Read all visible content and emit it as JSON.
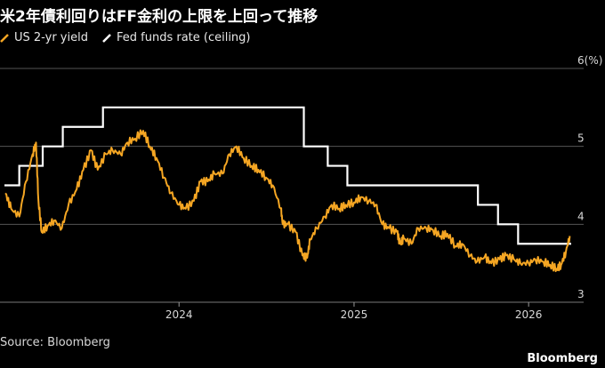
{
  "header": {
    "title": "米2年債利回りはFF金利の上限を上回って推移"
  },
  "footer": {
    "source": "Source: Bloomberg",
    "brand": "Bloomberg"
  },
  "colors": {
    "background": "#000000",
    "yield": "#f5a623",
    "fed": "#ffffff",
    "grid": "#555555"
  },
  "chart_data": {
    "type": "line",
    "title": "米2年債利回りはFF金利の上限を上回って推移",
    "xlabel": "",
    "ylabel": "",
    "y_unit_label": "6(%)",
    "ylim": [
      3,
      6
    ],
    "xlim": [
      "2023-01-01",
      "2026-03-31"
    ],
    "x_ticks": [
      "2024",
      "2025",
      "2026"
    ],
    "y_ticks": [
      "6(%)",
      "5",
      "4",
      "3"
    ],
    "grid": true,
    "legend_position": "top-left",
    "series": [
      {
        "name": "US 2-yr yield",
        "color": "#f5a623",
        "x": [
          "2023-01-03",
          "2023-01-15",
          "2023-02-01",
          "2023-02-15",
          "2023-03-01",
          "2023-03-08",
          "2023-03-13",
          "2023-03-20",
          "2023-04-01",
          "2023-04-15",
          "2023-05-01",
          "2023-05-15",
          "2023-06-01",
          "2023-06-15",
          "2023-07-01",
          "2023-07-15",
          "2023-08-01",
          "2023-08-15",
          "2023-09-01",
          "2023-09-15",
          "2023-10-01",
          "2023-10-18",
          "2023-11-01",
          "2023-11-15",
          "2023-12-01",
          "2023-12-15",
          "2024-01-01",
          "2024-01-15",
          "2024-02-01",
          "2024-02-15",
          "2024-03-01",
          "2024-03-15",
          "2024-04-01",
          "2024-04-15",
          "2024-04-30",
          "2024-05-15",
          "2024-06-01",
          "2024-06-15",
          "2024-07-01",
          "2024-07-15",
          "2024-08-01",
          "2024-08-05",
          "2024-08-15",
          "2024-09-01",
          "2024-09-15",
          "2024-09-25",
          "2024-10-01",
          "2024-10-15",
          "2024-11-01",
          "2024-11-15",
          "2024-12-01",
          "2024-12-15",
          "2025-01-01",
          "2025-01-15",
          "2025-02-01",
          "2025-02-15",
          "2025-03-01",
          "2025-03-15",
          "2025-04-01",
          "2025-04-07",
          "2025-04-15",
          "2025-05-01",
          "2025-05-15",
          "2025-06-01",
          "2025-06-15",
          "2025-07-01",
          "2025-07-15",
          "2025-08-01",
          "2025-08-15",
          "2025-09-01",
          "2025-09-15",
          "2025-10-01",
          "2025-10-15",
          "2025-11-01",
          "2025-11-15",
          "2025-12-01",
          "2025-12-15",
          "2026-01-01",
          "2026-01-15",
          "2026-02-01",
          "2026-02-15",
          "2026-03-01",
          "2026-03-10",
          "2026-03-20",
          "2026-03-28"
        ],
        "y": [
          4.4,
          4.2,
          4.1,
          4.55,
          4.9,
          5.05,
          4.3,
          3.9,
          3.98,
          4.05,
          3.95,
          4.25,
          4.45,
          4.7,
          4.95,
          4.7,
          4.9,
          4.95,
          4.9,
          5.05,
          5.1,
          5.2,
          5.0,
          4.85,
          4.6,
          4.4,
          4.25,
          4.2,
          4.3,
          4.55,
          4.55,
          4.65,
          4.65,
          4.9,
          5.0,
          4.85,
          4.75,
          4.7,
          4.6,
          4.5,
          4.2,
          4.0,
          4.0,
          3.9,
          3.6,
          3.57,
          3.8,
          3.95,
          4.1,
          4.25,
          4.2,
          4.25,
          4.28,
          4.35,
          4.3,
          4.25,
          4.0,
          3.95,
          3.9,
          3.75,
          3.82,
          3.75,
          3.95,
          3.95,
          3.93,
          3.85,
          3.88,
          3.72,
          3.75,
          3.6,
          3.52,
          3.58,
          3.5,
          3.55,
          3.6,
          3.55,
          3.5,
          3.5,
          3.55,
          3.52,
          3.48,
          3.43,
          3.48,
          3.65,
          3.85
        ]
      },
      {
        "name": "Fed funds rate (ceiling)",
        "color": "#ffffff",
        "step": true,
        "x": [
          "2023-01-01",
          "2023-02-01",
          "2023-03-22",
          "2023-05-03",
          "2023-07-26",
          "2024-09-18",
          "2024-11-07",
          "2024-12-18",
          "2025-09-17",
          "2025-10-29",
          "2025-12-10",
          "2026-03-31"
        ],
        "y": [
          4.5,
          4.75,
          5.0,
          5.25,
          5.5,
          5.0,
          4.75,
          4.5,
          4.25,
          4.0,
          3.75,
          3.75
        ]
      }
    ]
  }
}
